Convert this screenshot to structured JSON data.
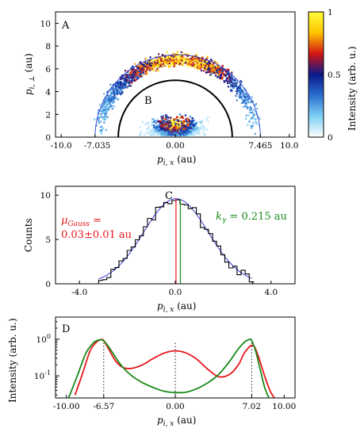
{
  "chart_data": [
    {
      "type": "heatmap",
      "panel_label": "A",
      "inner_label": "B",
      "xlabel": "p_{i,x} (au)",
      "ylabel": "p_{i,⊥} (au)",
      "xlim": [
        -10.5,
        10.5
      ],
      "ylim": [
        0,
        11
      ],
      "x_tick_labels": [
        "-10.0",
        "-7.035",
        "0.00",
        "7.465",
        "10.0"
      ],
      "x_tick_values": [
        -10.0,
        -7.035,
        0.0,
        7.465,
        10.0
      ],
      "y_ticks": [
        0,
        2,
        4,
        6,
        8,
        10
      ],
      "outer_semicircle": {
        "center_x": 0.215,
        "radius": 7.25
      },
      "inner_semicircle": {
        "center_x": 0.0,
        "radius": 5.0
      },
      "colorbar": {
        "label": "Intensity (arb. u.)",
        "ticks": [
          "0",
          "0.5",
          "1"
        ],
        "colors": [
          "#ffffff",
          "#7fd0f4",
          "#2a6fd0",
          "#0a1a8a",
          "#d41414",
          "#ffc400",
          "#fffb3a"
        ]
      }
    },
    {
      "type": "bar",
      "panel_label": "C",
      "xlabel": "p_{i,x} (au)",
      "ylabel": "Counts",
      "xlim": [
        -5,
        5
      ],
      "ylim": [
        0,
        11
      ],
      "x_ticks": [
        "-4.0",
        "0.0",
        "4.0"
      ],
      "x_tick_values": [
        -4.0,
        0.0,
        4.0
      ],
      "y_ticks": [
        0,
        5,
        10
      ],
      "gauss_annotation": {
        "line1": "μ",
        "sub": "Gauss",
        "eq": " =",
        "line2": "0.03±0.01 au"
      },
      "k_annotation": {
        "k": "k",
        "sub": "γ",
        "rest": " = 0.215 au"
      },
      "mu": 0.03,
      "k_gamma": 0.215,
      "gauss_amplitude": 9.6,
      "gauss_sigma": 1.35
    },
    {
      "type": "line",
      "panel_label": "D",
      "xlabel": "p_{i,x} (au)",
      "ylabel": "Intensity (arb. u.)",
      "xlim": [
        -11,
        11
      ],
      "y_scale": "log",
      "ylim": [
        0.025,
        4
      ],
      "x_ticks": [
        "-10.00",
        "-6.57",
        "0.00",
        "7.02",
        "10.00"
      ],
      "x_tick_values": [
        -10.0,
        -6.57,
        0.0,
        7.02,
        10.0
      ],
      "y_ticks": [
        {
          "label": "10",
          "exp": "0",
          "value": 1
        },
        {
          "label": "10",
          "exp": "-1",
          "value": 0.1
        }
      ],
      "dotted_lines_x": [
        -6.57,
        0.0,
        7.02
      ],
      "series": [
        {
          "color": "#e8161c",
          "x": [
            -9.2,
            -8.5,
            -7.8,
            -7.2,
            -6.8,
            -6.57,
            -6.2,
            -5.5,
            -4.8,
            -4.0,
            -3.0,
            -2.0,
            -1.0,
            0.0,
            1.0,
            2.0,
            3.0,
            4.0,
            5.0,
            5.8,
            6.3,
            6.8,
            7.02,
            7.3,
            7.7,
            8.2,
            8.7,
            9.1
          ],
          "y": [
            0.03,
            0.12,
            0.5,
            0.85,
            0.98,
            0.92,
            0.6,
            0.26,
            0.17,
            0.16,
            0.2,
            0.3,
            0.42,
            0.48,
            0.42,
            0.28,
            0.15,
            0.095,
            0.11,
            0.2,
            0.4,
            0.62,
            0.67,
            0.6,
            0.3,
            0.1,
            0.04,
            0.025
          ]
        },
        {
          "color": "#1a8a1a",
          "x": [
            -9.8,
            -9.0,
            -8.2,
            -7.5,
            -7.0,
            -6.57,
            -6.0,
            -5.0,
            -4.0,
            -3.0,
            -2.0,
            -1.0,
            0.0,
            1.0,
            2.0,
            3.0,
            4.0,
            5.0,
            5.8,
            6.4,
            6.8,
            7.02,
            7.4,
            7.8,
            8.2,
            8.6
          ],
          "y": [
            0.025,
            0.1,
            0.42,
            0.8,
            0.95,
            0.9,
            0.55,
            0.2,
            0.1,
            0.065,
            0.048,
            0.038,
            0.035,
            0.036,
            0.045,
            0.065,
            0.11,
            0.25,
            0.55,
            0.85,
            0.98,
            0.92,
            0.45,
            0.15,
            0.05,
            0.025
          ]
        }
      ]
    }
  ]
}
